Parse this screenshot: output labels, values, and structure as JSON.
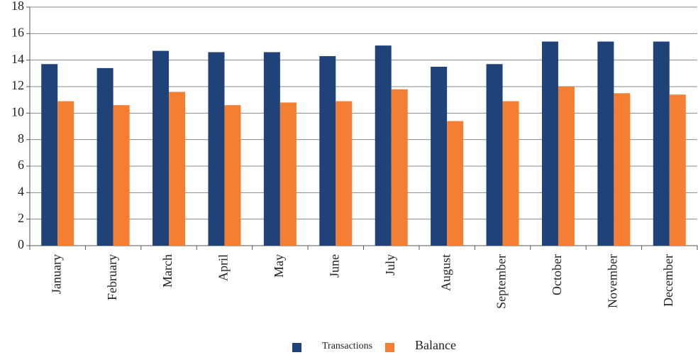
{
  "chart_data": {
    "type": "bar",
    "categories": [
      "January",
      "February",
      "March",
      "April",
      "May",
      "June",
      "July",
      "August",
      "September",
      "October",
      "November",
      "December"
    ],
    "series": [
      {
        "name": "Transactions",
        "color": "#1f4279",
        "values": [
          13.7,
          13.4,
          14.7,
          14.6,
          14.6,
          14.3,
          15.1,
          13.5,
          13.7,
          15.4,
          15.4,
          15.4
        ]
      },
      {
        "name": "Balance",
        "color": "#f47f33",
        "values": [
          10.9,
          10.6,
          11.6,
          10.6,
          10.8,
          10.9,
          11.8,
          9.4,
          10.9,
          12.0,
          11.5,
          11.4
        ]
      }
    ],
    "ylim": [
      0,
      18
    ],
    "yticks": [
      0,
      2,
      4,
      6,
      8,
      10,
      12,
      14,
      16,
      18
    ],
    "grid": true,
    "legend": "bottom"
  }
}
